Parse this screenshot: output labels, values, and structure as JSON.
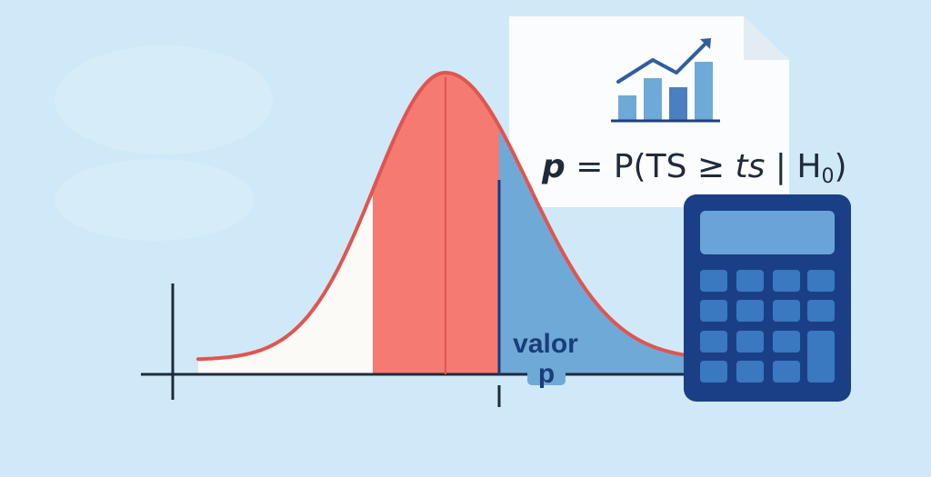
{
  "diagram": {
    "formula": {
      "p": "p",
      "eq_head": " = P(TS ≥ ",
      "ts": "ts",
      "bar": " | ",
      "h": "H",
      "sub": "0",
      "close": ")"
    },
    "region_label_line1": "valor",
    "region_label_line2": "p",
    "icons": [
      "document-icon",
      "bar-chart-trend-icon",
      "calculator-icon"
    ],
    "colors": {
      "background": "#cfe9f8",
      "curve": "#e05550",
      "central_fill": "#f47a72",
      "tail_fill": "#6fa9d8",
      "axis": "#1f2a3a",
      "cutoff_line": "#1a3a7a",
      "calculator_body": "#1b3f86",
      "calculator_keys": "#3a78c0",
      "calculator_screen": "#6aa3d8"
    }
  }
}
